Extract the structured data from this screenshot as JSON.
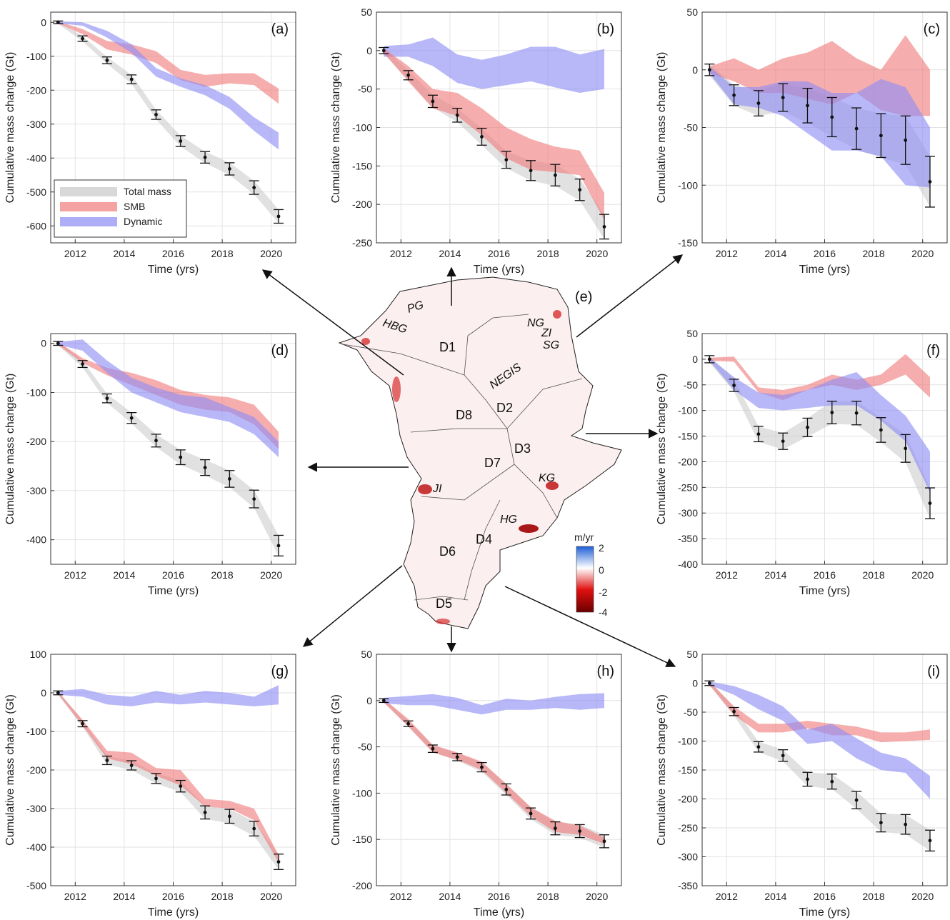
{
  "figure": {
    "colors": {
      "total": "#c8c8c8",
      "smb": "#f07a7a",
      "dynamic": "#8c8cf5",
      "errorbar": "#111111",
      "arrow": "#111111"
    },
    "legend": [
      {
        "key": "total",
        "label": "Total mass"
      },
      {
        "key": "smb",
        "label": "SMB"
      },
      {
        "key": "dynamic",
        "label": "Dynamic"
      }
    ],
    "map": {
      "label": "(e)",
      "regions": [
        "D1",
        "D2",
        "D3",
        "D4",
        "D5",
        "D6",
        "D7",
        "D8"
      ],
      "glaciers": [
        "PG",
        "HBG",
        "NG",
        "ZI",
        "SG",
        "NEGIS",
        "JI",
        "KG",
        "HG"
      ],
      "colorbar": {
        "title": "m/yr",
        "ticks": [
          "2",
          "0",
          "-2",
          "-4"
        ],
        "colors": [
          "#1f5fd6",
          "#ffffff",
          "#e01010",
          "#6a0000"
        ]
      }
    }
  },
  "chart_data": [
    {
      "id": "a",
      "type": "area",
      "label": "(a)",
      "xlabel": "Time (yrs)",
      "ylabel": "Cumulative mass change (Gt)",
      "xlim": [
        2011,
        2021
      ],
      "ylim": [
        -650,
        30
      ],
      "xticks": [
        2012,
        2014,
        2016,
        2018,
        2020
      ],
      "yticks": [
        0,
        -100,
        -200,
        -300,
        -400,
        -500,
        -600
      ],
      "grid": true,
      "legend": "bottom-left",
      "x": [
        2011.3,
        2012.3,
        2013.3,
        2014.3,
        2015.3,
        2016.3,
        2017.3,
        2018.3,
        2019.3,
        2020.3
      ],
      "total": {
        "mean": [
          0,
          -48,
          -112,
          -168,
          -272,
          -350,
          -398,
          -432,
          -487,
          -572
        ],
        "err": [
          4,
          8,
          10,
          13,
          14,
          16,
          17,
          18,
          20,
          20
        ]
      },
      "bands": [
        {
          "key": "smb",
          "low": [
            -3,
            -35,
            -80,
            -95,
            -120,
            -170,
            -190,
            -180,
            -185,
            -240
          ],
          "high": [
            3,
            -20,
            -55,
            -65,
            -85,
            -140,
            -155,
            -150,
            -150,
            -195
          ]
        },
        {
          "key": "dynamic",
          "low": [
            -3,
            -10,
            -45,
            -90,
            -160,
            -190,
            -215,
            -255,
            -320,
            -375
          ],
          "high": [
            3,
            0,
            -25,
            -65,
            -135,
            -165,
            -185,
            -220,
            -280,
            -325
          ]
        }
      ]
    },
    {
      "id": "b",
      "type": "area",
      "label": "(b)",
      "xlabel": "Time (yrs)",
      "ylabel": "Cumulative mass change (Gt)",
      "xlim": [
        2011,
        2021
      ],
      "ylim": [
        -250,
        50
      ],
      "xticks": [
        2012,
        2014,
        2016,
        2018,
        2020
      ],
      "yticks": [
        50,
        0,
        -50,
        -100,
        -150,
        -200,
        -250
      ],
      "grid": true,
      "x": [
        2011.3,
        2012.3,
        2013.3,
        2014.3,
        2015.3,
        2016.3,
        2017.3,
        2018.3,
        2019.3,
        2020.3
      ],
      "total": {
        "mean": [
          0,
          -32,
          -66,
          -84,
          -112,
          -142,
          -156,
          -162,
          -181,
          -229
        ],
        "err": [
          4,
          6,
          8,
          9,
          11,
          11,
          13,
          14,
          14,
          16
        ]
      },
      "bands": [
        {
          "key": "dynamic",
          "low": [
            -8,
            -8,
            -20,
            -42,
            -50,
            -45,
            -40,
            -48,
            -55,
            -50
          ],
          "high": [
            6,
            8,
            17,
            -5,
            -12,
            -5,
            5,
            5,
            -5,
            2
          ]
        },
        {
          "key": "smb",
          "low": [
            -3,
            -40,
            -75,
            -85,
            -110,
            -140,
            -155,
            -158,
            -162,
            -220
          ],
          "high": [
            3,
            -20,
            -50,
            -55,
            -75,
            -100,
            -115,
            -125,
            -130,
            -185
          ]
        }
      ]
    },
    {
      "id": "c",
      "type": "area",
      "label": "(c)",
      "xlabel": "Time (yrs)",
      "ylabel": "Cumulative mass change (Gt)",
      "xlim": [
        2011,
        2021
      ],
      "ylim": [
        -150,
        50
      ],
      "xticks": [
        2012,
        2014,
        2016,
        2018,
        2020
      ],
      "yticks": [
        50,
        0,
        -50,
        -100,
        -150
      ],
      "grid": true,
      "x": [
        2011.3,
        2012.3,
        2013.3,
        2014.3,
        2015.3,
        2016.3,
        2017.3,
        2018.3,
        2019.3,
        2020.3
      ],
      "total": {
        "mean": [
          0,
          -22,
          -29,
          -24,
          -31,
          -41,
          -51,
          -57,
          -61,
          -97
        ],
        "err": [
          5,
          9,
          11,
          12,
          15,
          17,
          18,
          19,
          21,
          22
        ]
      },
      "bands": [
        {
          "key": "smb",
          "low": [
            -3,
            -10,
            -20,
            -20,
            -25,
            -30,
            -20,
            -35,
            -40,
            -40
          ],
          "high": [
            3,
            10,
            0,
            10,
            15,
            25,
            10,
            0,
            30,
            0
          ]
        },
        {
          "key": "dynamic",
          "low": [
            -3,
            -30,
            -33,
            -40,
            -55,
            -70,
            -70,
            -75,
            -100,
            -102
          ],
          "high": [
            3,
            -15,
            -15,
            -10,
            -10,
            -20,
            -20,
            -8,
            -15,
            -50
          ]
        }
      ]
    },
    {
      "id": "d",
      "type": "area",
      "label": "(d)",
      "xlabel": "Time (yrs)",
      "ylabel": "Cumulative mass change (Gt)",
      "xlim": [
        2011,
        2021
      ],
      "ylim": [
        -450,
        20
      ],
      "xticks": [
        2012,
        2014,
        2016,
        2018,
        2020
      ],
      "yticks": [
        0,
        -100,
        -200,
        -300,
        -400
      ],
      "grid": true,
      "x": [
        2011.3,
        2012.3,
        2013.3,
        2014.3,
        2015.3,
        2016.3,
        2017.3,
        2018.3,
        2019.3,
        2020.3
      ],
      "total": {
        "mean": [
          0,
          -42,
          -112,
          -152,
          -198,
          -232,
          -253,
          -276,
          -317,
          -412
        ],
        "err": [
          4,
          7,
          9,
          11,
          13,
          15,
          16,
          17,
          18,
          21
        ]
      },
      "bands": [
        {
          "key": "smb",
          "low": [
            -3,
            -40,
            -65,
            -85,
            -105,
            -125,
            -135,
            -140,
            -165,
            -215
          ],
          "high": [
            3,
            -30,
            -50,
            -60,
            -75,
            -95,
            -105,
            -110,
            -125,
            -180
          ]
        },
        {
          "key": "dynamic",
          "low": [
            -3,
            -15,
            -60,
            -100,
            -120,
            -140,
            -150,
            -160,
            -185,
            -232
          ],
          "high": [
            3,
            8,
            -35,
            -70,
            -90,
            -105,
            -110,
            -130,
            -150,
            -200
          ]
        }
      ]
    },
    {
      "id": "f",
      "type": "area",
      "label": "(f)",
      "xlabel": "Time (yrs)",
      "ylabel": "Cumulative mass change (Gt)",
      "xlim": [
        2011,
        2021
      ],
      "ylim": [
        -400,
        50
      ],
      "xticks": [
        2012,
        2014,
        2016,
        2018,
        2020
      ],
      "yticks": [
        50,
        0,
        -50,
        -100,
        -150,
        -200,
        -250,
        -300,
        -350,
        -400
      ],
      "grid": true,
      "x": [
        2011.3,
        2012.3,
        2013.3,
        2014.3,
        2015.3,
        2016.3,
        2017.3,
        2018.3,
        2019.3,
        2020.3
      ],
      "total": {
        "mean": [
          0,
          -51,
          -146,
          -160,
          -133,
          -104,
          -105,
          -138,
          -174,
          -281
        ],
        "err": [
          7,
          12,
          15,
          16,
          18,
          22,
          23,
          24,
          27,
          30
        ]
      },
      "bands": [
        {
          "key": "smb",
          "low": [
            -3,
            -5,
            -65,
            -80,
            -60,
            -50,
            -60,
            -50,
            -30,
            -75
          ],
          "high": [
            3,
            5,
            -55,
            -60,
            -50,
            -30,
            -40,
            -30,
            10,
            -35
          ]
        },
        {
          "key": "dynamic",
          "low": [
            -3,
            -60,
            -95,
            -100,
            -95,
            -90,
            -90,
            -120,
            -160,
            -260
          ],
          "high": [
            3,
            -35,
            -65,
            -70,
            -60,
            -40,
            -25,
            -70,
            -110,
            -180
          ]
        }
      ]
    },
    {
      "id": "g",
      "type": "area",
      "label": "(g)",
      "xlabel": "Time (yrs)",
      "ylabel": "Cumulative mass change (Gt)",
      "xlim": [
        2011,
        2021
      ],
      "ylim": [
        -500,
        100
      ],
      "xticks": [
        2012,
        2014,
        2016,
        2018,
        2020
      ],
      "yticks": [
        100,
        0,
        -100,
        -200,
        -300,
        -400,
        -500
      ],
      "grid": true,
      "x": [
        2011.3,
        2012.3,
        2013.3,
        2014.3,
        2015.3,
        2016.3,
        2017.3,
        2018.3,
        2019.3,
        2020.3
      ],
      "total": {
        "mean": [
          0,
          -80,
          -175,
          -188,
          -222,
          -242,
          -310,
          -320,
          -352,
          -438
        ],
        "err": [
          5,
          8,
          11,
          12,
          13,
          15,
          17,
          18,
          19,
          20
        ]
      },
      "bands": [
        {
          "key": "smb",
          "low": [
            -3,
            -85,
            -170,
            -185,
            -215,
            -240,
            -295,
            -300,
            -330,
            -440
          ],
          "high": [
            3,
            -70,
            -150,
            -155,
            -195,
            -200,
            -275,
            -280,
            -300,
            -420
          ]
        },
        {
          "key": "dynamic",
          "low": [
            -5,
            -10,
            -30,
            -35,
            -25,
            -30,
            -25,
            -30,
            -35,
            -30
          ],
          "high": [
            5,
            10,
            -5,
            -10,
            5,
            -5,
            5,
            0,
            -10,
            20
          ]
        }
      ]
    },
    {
      "id": "h",
      "type": "area",
      "label": "(h)",
      "xlabel": "Time (yrs)",
      "ylabel": "Cumulative mass change (Gt)",
      "xlim": [
        2011,
        2021
      ],
      "ylim": [
        -200,
        50
      ],
      "xticks": [
        2012,
        2014,
        2016,
        2018,
        2020
      ],
      "yticks": [
        50,
        0,
        -50,
        -100,
        -150,
        -200
      ],
      "grid": true,
      "x": [
        2011.3,
        2012.3,
        2013.3,
        2014.3,
        2015.3,
        2016.3,
        2017.3,
        2018.3,
        2019.3,
        2020.3
      ],
      "total": {
        "mean": [
          0,
          -25,
          -52,
          -61,
          -72,
          -96,
          -122,
          -138,
          -141,
          -152
        ],
        "err": [
          2,
          3,
          4,
          4,
          5,
          6,
          6,
          7,
          7,
          7
        ]
      },
      "bands": [
        {
          "key": "smb",
          "low": [
            -2,
            -28,
            -56,
            -64,
            -75,
            -100,
            -125,
            -142,
            -145,
            -155
          ],
          "high": [
            2,
            -20,
            -48,
            -56,
            -66,
            -90,
            -115,
            -130,
            -135,
            -148
          ]
        },
        {
          "key": "dynamic",
          "low": [
            -3,
            -5,
            -5,
            -10,
            -15,
            -10,
            -10,
            -8,
            -10,
            -8
          ],
          "high": [
            3,
            5,
            7,
            3,
            -5,
            2,
            0,
            4,
            7,
            8
          ]
        }
      ]
    },
    {
      "id": "i",
      "type": "area",
      "label": "(i)",
      "xlabel": "Time (yrs)",
      "ylabel": "Cumulative mass change (Gt)",
      "xlim": [
        2011,
        2021
      ],
      "ylim": [
        -350,
        50
      ],
      "xticks": [
        2012,
        2014,
        2016,
        2018,
        2020
      ],
      "yticks": [
        50,
        0,
        -50,
        -100,
        -150,
        -200,
        -250,
        -300,
        -350
      ],
      "grid": true,
      "x": [
        2011.3,
        2012.3,
        2013.3,
        2014.3,
        2015.3,
        2016.3,
        2017.3,
        2018.3,
        2019.3,
        2020.3
      ],
      "total": {
        "mean": [
          0,
          -49,
          -110,
          -125,
          -166,
          -170,
          -202,
          -241,
          -244,
          -272
        ],
        "err": [
          4,
          7,
          9,
          10,
          12,
          13,
          15,
          16,
          17,
          18
        ]
      },
      "bands": [
        {
          "key": "smb",
          "low": [
            -3,
            -55,
            -85,
            -85,
            -78,
            -90,
            -90,
            -102,
            -100,
            -98
          ],
          "high": [
            3,
            -40,
            -70,
            -70,
            -65,
            -70,
            -75,
            -85,
            -85,
            -80
          ]
        },
        {
          "key": "dynamic",
          "low": [
            -3,
            -20,
            -45,
            -65,
            -105,
            -100,
            -130,
            -150,
            -155,
            -200
          ],
          "high": [
            3,
            -5,
            -20,
            -40,
            -80,
            -70,
            -95,
            -120,
            -130,
            -160
          ]
        }
      ]
    }
  ]
}
